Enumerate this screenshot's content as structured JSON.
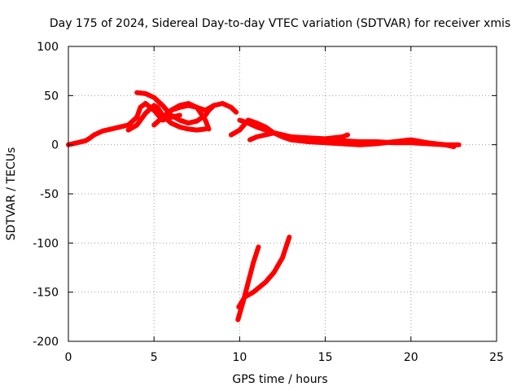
{
  "chart_data": {
    "type": "line",
    "title": "Day 175 of 2024, Sidereal Day-to-day VTEC variation (SDTVAR) for receiver xmis",
    "xlabel": "GPS time / hours",
    "ylabel": "SDTVAR / TECUs",
    "xlim": [
      0,
      25
    ],
    "ylim": [
      -200,
      100
    ],
    "xticks": [
      0,
      5,
      10,
      15,
      20,
      25
    ],
    "yticks": [
      -200,
      -150,
      -100,
      -50,
      0,
      50,
      100
    ],
    "xtick_labels": [
      "0",
      "5",
      "10",
      "15",
      "20",
      "25"
    ],
    "ytick_labels": [
      "-200",
      "-150",
      "-100",
      "-50",
      "0",
      "50",
      "100"
    ],
    "grid": true,
    "series_color": "#ff0000",
    "series": [
      {
        "name": "trace-1",
        "x": [
          0,
          0.5,
          1,
          1.2,
          1.5,
          2,
          2.5,
          3,
          3.5,
          4,
          4.2,
          4.5,
          5,
          5.5,
          6,
          6.5
        ],
        "y": [
          0,
          2,
          4,
          6,
          10,
          14,
          16,
          18,
          20,
          28,
          38,
          42,
          35,
          25,
          28,
          30
        ]
      },
      {
        "name": "trace-2",
        "x": [
          3.5,
          4,
          4.5,
          5,
          5.2,
          5.5,
          6,
          6.5,
          7,
          7.5,
          8
        ],
        "y": [
          15,
          20,
          32,
          40,
          38,
          30,
          22,
          18,
          16,
          15,
          16
        ]
      },
      {
        "name": "trace-3",
        "x": [
          4,
          4.5,
          5,
          5.5,
          6,
          6.5,
          7,
          7.5,
          8,
          8.2,
          8.5
        ],
        "y": [
          53,
          52,
          48,
          40,
          30,
          25,
          22,
          24,
          30,
          35,
          40
        ]
      },
      {
        "name": "trace-4",
        "x": [
          5,
          5.5,
          6,
          6.5,
          7,
          7.5,
          8,
          8.5,
          9,
          9.5,
          9.8
        ],
        "y": [
          20,
          28,
          35,
          38,
          40,
          38,
          35,
          40,
          42,
          38,
          33
        ]
      },
      {
        "name": "trace-5",
        "x": [
          6,
          6.5,
          7,
          7.5,
          8,
          8.2
        ],
        "y": [
          35,
          40,
          42,
          38,
          25,
          16
        ]
      },
      {
        "name": "trace-6",
        "x": [
          9.5,
          10,
          10.5,
          11,
          11.5,
          12,
          12.5,
          13,
          13.5,
          14,
          15,
          16,
          17,
          18,
          19,
          20,
          21,
          22,
          22.8
        ],
        "y": [
          10,
          15,
          25,
          22,
          18,
          12,
          10,
          8,
          7,
          6,
          5,
          4,
          3,
          3,
          2,
          2,
          1,
          0,
          0
        ]
      },
      {
        "name": "trace-7",
        "x": [
          10.6,
          11,
          11.5,
          12,
          12.5,
          13,
          14,
          15,
          16,
          16.3
        ],
        "y": [
          5,
          8,
          10,
          12,
          10,
          8,
          7,
          6,
          8,
          10
        ]
      },
      {
        "name": "trace-8",
        "x": [
          10,
          10.5,
          11,
          11.5,
          12,
          12.5,
          13,
          14,
          15,
          16,
          17,
          18,
          19,
          20,
          21,
          22,
          22.5
        ],
        "y": [
          25,
          22,
          18,
          15,
          12,
          8,
          5,
          3,
          2,
          1,
          0,
          1,
          3,
          5,
          2,
          0,
          -2
        ]
      },
      {
        "name": "trace-9",
        "x": [
          9.9,
          10.2,
          10.5,
          10.8,
          11.1
        ],
        "y": [
          -178,
          -160,
          -140,
          -120,
          -104
        ]
      },
      {
        "name": "trace-10",
        "x": [
          9.95,
          10.3,
          10.8,
          11.5,
          12,
          12.5,
          12.9
        ],
        "y": [
          -165,
          -155,
          -150,
          -140,
          -130,
          -115,
          -94
        ]
      }
    ]
  }
}
